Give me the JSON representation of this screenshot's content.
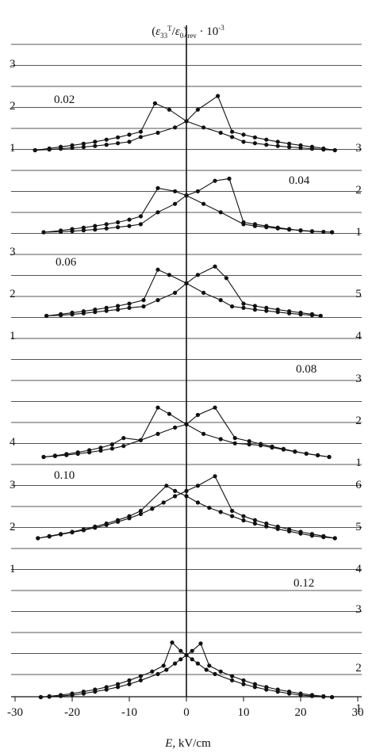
{
  "chart_data": {
    "type": "line",
    "title_parts": {
      "open": "(",
      "eps": "ε",
      "sub33": "33",
      "supT": "T",
      "slash": "/",
      "eps0": "ε",
      "sub0": "0",
      "close": ")",
      "subrev": "rev",
      "mult": " · 10",
      "exp": "-3"
    },
    "xlabel_var": "E",
    "xlabel_unit": ", kV/cm",
    "xlim": [
      -30,
      30
    ],
    "x_ticks": [
      -30,
      -20,
      -10,
      0,
      10,
      20,
      30
    ],
    "x_tick_labels": [
      "-30",
      "-20",
      "-10",
      "0",
      "10",
      "20",
      "30"
    ],
    "grid": "horizontal",
    "panels": [
      {
        "label": "0.02",
        "left_ticks": [
          "1",
          "2",
          "3"
        ],
        "right_ticks": [
          "3"
        ],
        "series": [
          {
            "branch": "descending",
            "x": [
              -26.5,
              -24,
              -22,
              -20,
              -18,
              -16,
              -14,
              -12,
              -10,
              -8,
              -5.5,
              -3,
              0,
              3,
              6,
              8,
              10,
              12,
              14,
              16,
              18,
              20,
              22,
              24,
              26
            ],
            "y": [
              1.02,
              1.1,
              1.18,
              1.25,
              1.33,
              1.42,
              1.52,
              1.63,
              1.76,
              1.9,
              3.25,
              2.95,
              2.4,
              2.1,
              1.85,
              1.65,
              1.42,
              1.35,
              1.28,
              1.22,
              1.17,
              1.13,
              1.09,
              1.05,
              1.02
            ]
          },
          {
            "branch": "ascending",
            "x": [
              -26.5,
              -24,
              -22,
              -20,
              -18,
              -16,
              -14,
              -12,
              -10,
              -8,
              -5,
              -2,
              0,
              2,
              5.5,
              8,
              10,
              12,
              14,
              16,
              18,
              20,
              22,
              24,
              26
            ],
            "y": [
              1.02,
              1.05,
              1.09,
              1.13,
              1.17,
              1.22,
              1.28,
              1.35,
              1.42,
              1.65,
              1.85,
              2.1,
              2.4,
              2.95,
              3.6,
              1.9,
              1.76,
              1.63,
              1.52,
              1.42,
              1.33,
              1.25,
              1.18,
              1.1,
              1.02
            ]
          }
        ]
      },
      {
        "label": "0.04",
        "left_ticks": [],
        "right_ticks": [
          "1",
          "2"
        ],
        "series": [
          {
            "branch": "descending",
            "x": [
              -25,
              -22,
              -20,
              -18,
              -16,
              -14,
              -12,
              -10,
              -8,
              -5,
              -2,
              0,
              3,
              6,
              10,
              12,
              14,
              16,
              18,
              20,
              22,
              24,
              25.5
            ],
            "y": [
              1.0,
              1.08,
              1.15,
              1.22,
              1.3,
              1.38,
              1.47,
              1.6,
              1.76,
              3.1,
              2.95,
              2.75,
              2.35,
              1.95,
              1.38,
              1.3,
              1.24,
              1.18,
              1.13,
              1.09,
              1.05,
              1.02,
              1.0
            ]
          },
          {
            "branch": "ascending",
            "x": [
              -25,
              -22,
              -20,
              -18,
              -16,
              -14,
              -12,
              -10,
              -8,
              -5,
              -2,
              0,
              2,
              5,
              7.5,
              10,
              12,
              14,
              16,
              18,
              20,
              22,
              25.5
            ],
            "y": [
              1.0,
              1.02,
              1.05,
              1.09,
              1.13,
              1.18,
              1.24,
              1.3,
              1.38,
              1.95,
              2.35,
              2.75,
              2.95,
              3.45,
              3.55,
              1.47,
              1.38,
              1.3,
              1.22,
              1.15,
              1.08,
              1.04,
              1.0
            ]
          }
        ]
      },
      {
        "label": "0.06",
        "left_ticks": [
          "1",
          "2",
          "3"
        ],
        "right_ticks": [
          "4",
          "5"
        ],
        "series": [
          {
            "branch": "descending",
            "x": [
              -24.5,
              -22,
              -20,
              -18,
              -16,
              -14,
              -12,
              -10,
              -7.5,
              -5,
              -3,
              0,
              3,
              6,
              8,
              10,
              12,
              14,
              16,
              18,
              20,
              22,
              23.5
            ],
            "y": [
              4.0,
              4.08,
              4.15,
              4.22,
              4.3,
              4.38,
              4.47,
              4.58,
              4.75,
              6.2,
              5.95,
              5.55,
              5.1,
              4.75,
              4.45,
              4.38,
              4.3,
              4.24,
              4.18,
              4.12,
              4.07,
              4.03,
              4.0
            ]
          },
          {
            "branch": "ascending",
            "x": [
              -24.5,
              -22,
              -20,
              -18,
              -16,
              -14,
              -12,
              -10,
              -7.5,
              -5,
              -2,
              0,
              2,
              5,
              7,
              10,
              12,
              14,
              16,
              18,
              20,
              22,
              23.5
            ],
            "y": [
              4.0,
              4.03,
              4.07,
              4.12,
              4.18,
              4.24,
              4.3,
              4.38,
              4.45,
              4.75,
              5.1,
              5.55,
              5.95,
              6.35,
              5.8,
              4.58,
              4.47,
              4.38,
              4.3,
              4.22,
              4.15,
              4.08,
              4.0
            ]
          }
        ]
      },
      {
        "label": "0.08",
        "left_ticks": [
          "4"
        ],
        "right_ticks": [
          "1",
          "2",
          "3"
        ],
        "series": [
          {
            "branch": "descending",
            "x": [
              -25,
              -23,
              -21,
              -19,
              -17,
              -15,
              -13,
              -11,
              -8,
              -5,
              -3,
              0,
              3,
              6,
              8.5,
              11,
              13,
              15,
              17,
              19,
              21,
              23,
              25
            ],
            "y": [
              1.0,
              1.06,
              1.14,
              1.22,
              1.32,
              1.44,
              1.6,
              1.9,
              1.8,
              3.35,
              3.05,
              2.55,
              2.1,
              1.85,
              1.65,
              1.6,
              1.55,
              1.45,
              1.35,
              1.25,
              1.16,
              1.08,
              1.0
            ]
          },
          {
            "branch": "ascending",
            "x": [
              -25,
              -23,
              -21,
              -19,
              -17,
              -15,
              -13,
              -11,
              -8,
              -5,
              -2,
              0,
              2,
              5,
              8.5,
              11,
              13,
              15,
              17,
              19,
              21,
              23,
              25
            ],
            "y": [
              1.0,
              1.04,
              1.09,
              1.15,
              1.22,
              1.3,
              1.4,
              1.52,
              1.8,
              2.1,
              2.4,
              2.55,
              3.0,
              3.35,
              1.9,
              1.75,
              1.62,
              1.5,
              1.38,
              1.26,
              1.16,
              1.08,
              1.0
            ]
          }
        ]
      },
      {
        "label": "0.10",
        "left_ticks": [
          "1",
          "2",
          "3"
        ],
        "right_ticks": [
          "4",
          "5",
          "6"
        ],
        "series": [
          {
            "branch": "descending",
            "x": [
              -26,
              -24,
              -22,
              -20,
              -18,
              -16,
              -14,
              -12,
              -10,
              -8,
              -3.5,
              -2,
              0,
              2,
              4,
              6,
              8,
              10,
              12,
              14,
              16,
              18,
              20,
              22,
              24,
              26
            ],
            "y": [
              4.0,
              4.1,
              4.2,
              4.3,
              4.42,
              4.55,
              4.7,
              4.86,
              5.05,
              5.3,
              6.5,
              6.25,
              6.0,
              5.7,
              5.45,
              5.25,
              5.05,
              4.85,
              4.7,
              4.56,
              4.44,
              4.33,
              4.22,
              4.12,
              4.05,
              4.0
            ]
          },
          {
            "branch": "ascending",
            "x": [
              -26,
              -24,
              -22,
              -20,
              -18,
              -16,
              -14,
              -12,
              -10,
              -8,
              -6,
              -4,
              -2,
              0,
              2,
              5,
              8,
              10,
              12,
              14,
              16,
              18,
              20,
              22,
              24,
              26
            ],
            "y": [
              4.0,
              4.08,
              4.18,
              4.28,
              4.38,
              4.5,
              4.63,
              4.78,
              4.95,
              5.15,
              5.4,
              5.7,
              6.0,
              6.25,
              6.5,
              6.95,
              5.3,
              5.05,
              4.86,
              4.7,
              4.55,
              4.42,
              4.3,
              4.2,
              4.1,
              4.0
            ]
          }
        ]
      },
      {
        "label": "0.12",
        "left_ticks": [],
        "right_ticks": [
          "1",
          "2",
          "3"
        ],
        "series": [
          {
            "branch": "descending",
            "x": [
              -25.5,
              -24,
              -22,
              -20,
              -18,
              -16,
              -14,
              -12,
              -10,
              -8,
              -6,
              -4,
              -2.5,
              -1,
              0,
              1,
              2,
              3.5,
              5,
              8,
              10,
              12,
              14,
              16,
              18,
              20,
              22,
              24,
              25.5
            ],
            "y": [
              1.0,
              1.04,
              1.1,
              1.17,
              1.26,
              1.36,
              1.48,
              1.62,
              1.8,
              2.0,
              2.22,
              2.5,
              3.6,
              3.2,
              3.0,
              2.8,
              2.6,
              2.3,
              2.1,
              1.8,
              1.62,
              1.48,
              1.36,
              1.26,
              1.17,
              1.1,
              1.05,
              1.02,
              1.0
            ]
          },
          {
            "branch": "ascending",
            "x": [
              -25.5,
              -24,
              -22,
              -20,
              -18,
              -16,
              -14,
              -12,
              -10,
              -8,
              -5,
              -3.5,
              -2,
              -1,
              0,
              1,
              2.5,
              4,
              6,
              8,
              10,
              12,
              14,
              16,
              18,
              20,
              22,
              24,
              25.5
            ],
            "y": [
              1.0,
              1.02,
              1.05,
              1.1,
              1.17,
              1.26,
              1.36,
              1.48,
              1.62,
              1.8,
              2.1,
              2.3,
              2.6,
              2.8,
              3.0,
              3.2,
              3.55,
              2.5,
              2.22,
              2.0,
              1.8,
              1.62,
              1.48,
              1.36,
              1.26,
              1.17,
              1.1,
              1.04,
              1.0
            ]
          }
        ]
      }
    ]
  }
}
